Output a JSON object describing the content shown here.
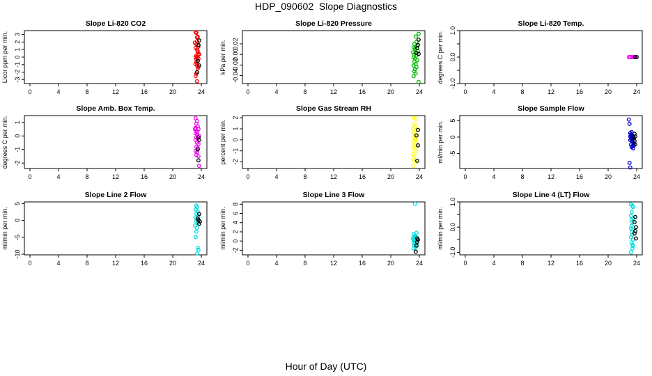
{
  "title": "HDP_090602  Slope Diagnostics",
  "x_caption": "Hour of Day (UTC)",
  "chart_data": [
    {
      "type": "scatter",
      "title": "Slope Li-820 CO2",
      "ylabel": "Licor ppm per min.",
      "xlim": [
        0,
        24
      ],
      "x_ticks": [
        0,
        4,
        8,
        12,
        16,
        20,
        24
      ],
      "ylim": [
        -3.5,
        3.5
      ],
      "y_ticks": [
        -3,
        -2,
        -1,
        0,
        1,
        2,
        3
      ],
      "series": [
        {
          "color": "#ff0000",
          "x": [
            23.2,
            23.3,
            23.4,
            23.5,
            23.1,
            23.3,
            23.6,
            23.2,
            23.4,
            23.5,
            23.7,
            23.3,
            23.2,
            23.4,
            23.6,
            23.5,
            23.3,
            23.2,
            23.4,
            23.6,
            23.5,
            23.3,
            23.2,
            23.4,
            23.5,
            23.3,
            23.6,
            23.4
          ],
          "y": [
            3.3,
            3.2,
            2.6,
            2.7,
            1.9,
            1.7,
            1.4,
            1.2,
            1.0,
            0.8,
            0.4,
            0.2,
            0.0,
            -0.1,
            -0.2,
            -0.5,
            -0.7,
            -0.9,
            -1.1,
            -1.3,
            -1.5,
            -2.2,
            -2.5,
            -3.2,
            0.6,
            -0.3,
            0.3,
            2.1
          ]
        },
        {
          "color": "#000000",
          "x": [
            23.7,
            23.6,
            23.5,
            23.4,
            23.7
          ],
          "y": [
            2.2,
            1.6,
            -0.5,
            -2.0,
            -1.1
          ]
        }
      ]
    },
    {
      "type": "scatter",
      "title": "Slope Li-820 Pressure",
      "ylabel": "kPa per min.",
      "xlim": [
        0,
        24
      ],
      "x_ticks": [
        0,
        4,
        8,
        12,
        16,
        20,
        24
      ],
      "ylim": [
        -0.055,
        0.045
      ],
      "y_ticks": [
        -0.04,
        -0.02,
        0.0,
        0.02
      ],
      "y_tick_labels": [
        "-0.04",
        "-0.02",
        "0.00",
        "0.02"
      ],
      "series": [
        {
          "color": "#00bb00",
          "x": [
            23.9,
            23.5,
            23.6,
            23.3,
            23.7,
            23.2,
            23.4,
            23.8,
            23.1,
            23.5,
            23.3,
            23.6,
            23.2,
            23.4,
            23.7,
            23.3,
            23.5,
            23.2,
            23.6,
            23.4,
            23.3,
            23.5,
            23.2,
            23.4,
            23.9
          ],
          "y": [
            0.039,
            0.034,
            0.024,
            0.02,
            0.016,
            0.013,
            0.009,
            0.006,
            0.004,
            0.002,
            0.0,
            -0.002,
            -0.006,
            -0.008,
            -0.011,
            -0.014,
            -0.018,
            -0.021,
            -0.024,
            -0.028,
            -0.032,
            -0.036,
            -0.041,
            0.011,
            -0.052
          ]
        },
        {
          "color": "#000000",
          "x": [
            23.9,
            23.8,
            23.7,
            23.6,
            23.9
          ],
          "y": [
            0.028,
            0.018,
            0.012,
            0.003,
            0.001
          ]
        }
      ]
    },
    {
      "type": "scatter",
      "title": "Slope Li-820 Temp.",
      "ylabel": "degrees C per min.",
      "xlim": [
        0,
        24
      ],
      "x_ticks": [
        0,
        4,
        8,
        12,
        16,
        20,
        24
      ],
      "ylim": [
        -1.0,
        1.0
      ],
      "y_ticks": [
        -1.0,
        0.0,
        1.0
      ],
      "y_minor_ticks": [
        -0.5,
        0.5
      ],
      "y_tick_labels": [
        "-1.0",
        "0.0",
        "1.0"
      ],
      "series": [
        {
          "color": "#ff00ff",
          "x": [
            22.9,
            23.1,
            23.3,
            23.5,
            23.6,
            23.7
          ],
          "y": [
            0.0,
            0.0,
            0.0,
            0.0,
            0.0,
            0.0
          ]
        },
        {
          "color": "#000000",
          "x": [
            23.8,
            24.0
          ],
          "y": [
            0.0,
            0.0
          ]
        }
      ]
    },
    {
      "type": "scatter",
      "title": "Slope Amb. Box Temp.",
      "ylabel": "degrees C per min.",
      "xlim": [
        0,
        24
      ],
      "x_ticks": [
        0,
        4,
        8,
        12,
        16,
        20,
        24
      ],
      "ylim": [
        -2.4,
        1.5
      ],
      "y_ticks": [
        -2,
        -1,
        0,
        1
      ],
      "series": [
        {
          "color": "#ee00ee",
          "x": [
            23.2,
            23.4,
            23.3,
            23.5,
            23.1,
            23.3,
            23.6,
            23.2,
            23.4,
            23.7,
            23.3,
            23.5,
            23.2,
            23.4,
            23.6,
            23.3,
            23.5,
            23.2,
            23.4,
            23.3,
            23.6,
            23.2,
            23.4,
            23.7
          ],
          "y": [
            1.3,
            1.1,
            0.9,
            0.7,
            0.5,
            0.4,
            0.5,
            0.2,
            0.1,
            0.0,
            -0.1,
            -0.2,
            -0.3,
            -0.5,
            -0.6,
            -0.8,
            -0.9,
            -1.1,
            -1.2,
            -1.4,
            -1.5,
            0.6,
            0.3,
            -2.2
          ]
        },
        {
          "color": "#000000",
          "x": [
            23.6,
            23.7,
            23.5,
            23.6
          ],
          "y": [
            -0.1,
            -0.3,
            -1.0,
            -1.8
          ]
        }
      ]
    },
    {
      "type": "scatter",
      "title": "Slope Gas Stream RH",
      "ylabel": "percent per min.",
      "xlim": [
        0,
        24
      ],
      "x_ticks": [
        0,
        4,
        8,
        12,
        16,
        20,
        24
      ],
      "ylim": [
        -2.6,
        2.2
      ],
      "y_ticks": [
        -2,
        -1,
        0,
        1,
        2
      ],
      "series": [
        {
          "color": "#ffff00",
          "x": [
            23.2,
            23.5,
            23.3,
            23.4,
            23.1,
            23.6,
            23.2,
            23.4,
            23.3,
            23.5,
            23.2,
            23.6,
            23.3,
            23.4,
            23.2,
            23.5,
            23.1,
            23.3,
            23.4,
            23.2,
            23.5,
            23.1
          ],
          "y": [
            2.0,
            1.9,
            1.4,
            1.2,
            1.0,
            0.9,
            0.6,
            0.4,
            0.2,
            0.0,
            -0.2,
            -0.3,
            -0.5,
            -0.6,
            -0.8,
            -1.0,
            -1.3,
            -1.5,
            0.1,
            -1.8,
            -2.0,
            -2.4
          ]
        },
        {
          "color": "#000000",
          "x": [
            23.8,
            23.6,
            23.8,
            23.7
          ],
          "y": [
            0.9,
            0.4,
            -0.5,
            -1.9
          ]
        }
      ]
    },
    {
      "type": "scatter",
      "title": "Slope Sample Flow",
      "ylabel": "ml/min per min.",
      "xlim": [
        0,
        24
      ],
      "x_ticks": [
        0,
        4,
        8,
        12,
        16,
        20,
        24
      ],
      "ylim": [
        -9.5,
        6.5
      ],
      "y_ticks": [
        -5,
        0,
        5
      ],
      "series": [
        {
          "color": "#0000cc",
          "x": [
            22.9,
            23.0,
            23.1,
            23.2,
            23.3,
            23.4,
            23.5,
            23.6,
            23.2,
            23.4,
            23.1,
            23.3,
            23.5,
            23.6,
            23.2,
            23.4,
            23.3,
            23.5,
            23.1,
            23.4,
            23.2,
            23.0,
            23.1,
            23.3,
            23.6,
            23.4
          ],
          "y": [
            5.3,
            4.0,
            1.2,
            0.8,
            0.5,
            0.2,
            0.0,
            -0.2,
            -0.4,
            -0.6,
            -0.9,
            -1.2,
            -1.6,
            -1.9,
            -2.3,
            -2.7,
            -3.0,
            -3.4,
            0.2,
            0.4,
            -0.1,
            -7.8,
            -9.2,
            1.5,
            -2.6,
            -1.4
          ]
        },
        {
          "color": "#000000",
          "x": [
            23.7,
            23.8,
            23.6,
            23.7,
            23.8
          ],
          "y": [
            1.0,
            0.2,
            -0.4,
            -1.2,
            -2.2
          ]
        }
      ]
    },
    {
      "type": "scatter",
      "title": "Slope Line 2 Flow",
      "ylabel": "ml/min per min.",
      "xlim": [
        0,
        24
      ],
      "x_ticks": [
        0,
        4,
        8,
        12,
        16,
        20,
        24
      ],
      "ylim": [
        -10.2,
        5.5
      ],
      "y_ticks": [
        -10,
        -5,
        0,
        5
      ],
      "series": [
        {
          "color": "#00dddd",
          "x": [
            23.3,
            23.4,
            23.2,
            23.5,
            23.3,
            23.6,
            23.2,
            23.4,
            23.3,
            23.5,
            23.1,
            23.4,
            23.3,
            23.2,
            23.5,
            23.6,
            23.4
          ],
          "y": [
            4.4,
            3.9,
            3.3,
            2.6,
            2.0,
            1.4,
            0.9,
            0.4,
            -0.2,
            -0.7,
            -1.5,
            -2.2,
            -3.3,
            -4.9,
            -8.1,
            -8.7,
            -9.8
          ]
        },
        {
          "color": "#000000",
          "x": [
            23.7,
            23.6,
            23.8,
            23.7,
            23.5
          ],
          "y": [
            1.9,
            0.1,
            -0.3,
            -1.0,
            0.6
          ]
        }
      ]
    },
    {
      "type": "scatter",
      "title": "Slope Line 3 Flow",
      "ylabel": "ml/min per min.",
      "xlim": [
        0,
        24
      ],
      "x_ticks": [
        0,
        4,
        8,
        12,
        16,
        20,
        24
      ],
      "ylim": [
        -3.0,
        8.5
      ],
      "y_ticks": [
        -2,
        0,
        2,
        4,
        6,
        8
      ],
      "series": [
        {
          "color": "#00dddd",
          "x": [
            23.4,
            23.6,
            23.2,
            23.4,
            23.3,
            23.5,
            23.1,
            23.4,
            23.2,
            23.6,
            23.3,
            23.5,
            23.2,
            23.4,
            23.6,
            23.3,
            23.5,
            23.1,
            23.4,
            23.2
          ],
          "y": [
            8.1,
            1.8,
            1.5,
            1.2,
            1.0,
            0.8,
            0.6,
            0.4,
            0.2,
            0.1,
            0.0,
            -0.2,
            -0.4,
            -0.6,
            -0.8,
            -1.0,
            -1.3,
            0.5,
            0.3,
            -1.6
          ]
        },
        {
          "color": "#000000",
          "x": [
            23.7,
            23.8,
            23.7,
            23.6,
            23.5
          ],
          "y": [
            0.6,
            0.3,
            -0.2,
            -1.0,
            -2.3
          ]
        }
      ]
    },
    {
      "type": "scatter",
      "title": "Slope Line 4 (LT) Flow",
      "ylabel": "ml/min per min.",
      "xlim": [
        0,
        24
      ],
      "x_ticks": [
        0,
        4,
        8,
        12,
        16,
        20,
        24
      ],
      "ylim": [
        -1.1,
        1.0
      ],
      "y_ticks": [
        -1.0,
        0.0,
        1.0
      ],
      "y_minor_ticks": [
        -0.5,
        0.5
      ],
      "y_tick_labels": [
        "-1.0",
        "0.0",
        "1.0"
      ],
      "series": [
        {
          "color": "#00dddd",
          "x": [
            23.2,
            23.4,
            23.5,
            23.3,
            23.2,
            23.5,
            23.4,
            23.3,
            23.2,
            23.5,
            23.3,
            23.4,
            23.2,
            23.5,
            23.3,
            23.4,
            23.5,
            23.2,
            23.3,
            23.4
          ],
          "y": [
            0.9,
            0.85,
            0.8,
            0.6,
            0.45,
            0.35,
            0.2,
            0.05,
            -0.05,
            -0.1,
            -0.2,
            -0.3,
            -0.4,
            -0.5,
            -0.6,
            -0.7,
            -0.75,
            -1.0,
            0.3,
            -0.85
          ]
        },
        {
          "color": "#000000",
          "x": [
            23.8,
            23.7,
            23.9,
            23.8,
            23.7,
            23.9
          ],
          "y": [
            0.4,
            0.2,
            0.0,
            -0.15,
            -0.25,
            -0.45
          ]
        }
      ]
    }
  ]
}
